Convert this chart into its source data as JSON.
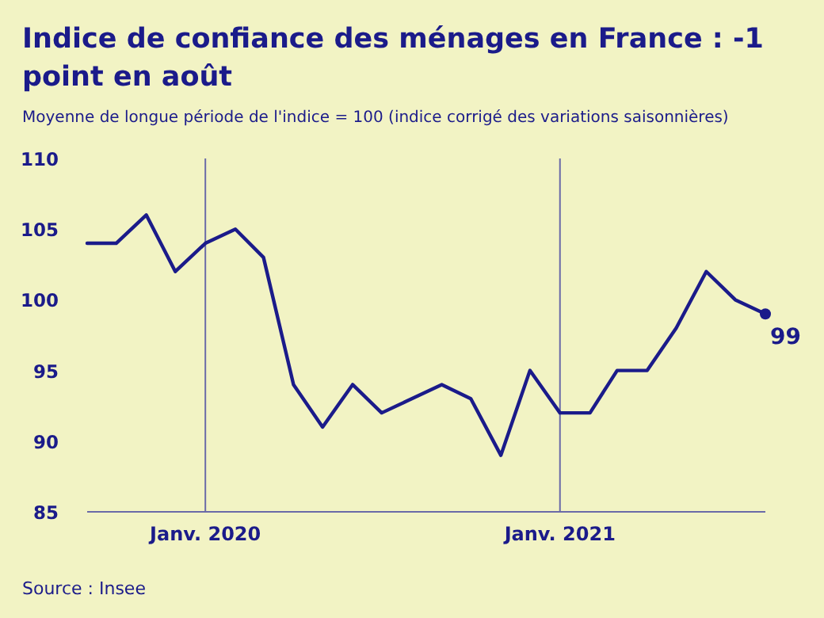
{
  "chart_data": {
    "type": "line",
    "title": "Indice de confiance des ménages en France : -1 point en août",
    "subtitle": "Moyenne de longue période de l'indice = 100 (indice corrigé des variations saisonnières)",
    "x": [
      "2019-09",
      "2019-10",
      "2019-11",
      "2019-12",
      "2020-01",
      "2020-02",
      "2020-03",
      "2020-04",
      "2020-05",
      "2020-06",
      "2020-07",
      "2020-08",
      "2020-09",
      "2020-10",
      "2020-11",
      "2020-12",
      "2021-01",
      "2021-02",
      "2021-03",
      "2021-04",
      "2021-05",
      "2021-06",
      "2021-07",
      "2021-08"
    ],
    "series": [
      {
        "color": "#1b1b8a",
        "values": [
          104,
          104,
          106,
          102,
          104,
          105,
          103,
          94,
          91,
          94,
          92,
          93,
          94,
          93,
          89,
          95,
          92,
          92,
          95,
          95,
          98,
          102,
          100,
          99
        ],
        "value_labels": [
          null,
          null,
          null,
          null,
          null,
          null,
          null,
          null,
          null,
          null,
          null,
          null,
          null,
          null,
          null,
          null,
          null,
          null,
          null,
          null,
          null,
          null,
          null,
          "99"
        ]
      }
    ],
    "xlim": [
      "2019-09",
      "2021-08"
    ],
    "xticks": [
      {
        "value": "2020-01",
        "label": "Janv. 2020"
      },
      {
        "value": "2021-01",
        "label": "Janv. 2021"
      }
    ],
    "ylim": [
      85,
      110
    ],
    "yticks": [
      85,
      90,
      95,
      100,
      105,
      110
    ],
    "grid": "x",
    "marker": "none",
    "line_style": "solid",
    "annotations": [
      "Source : Insee"
    ]
  }
}
